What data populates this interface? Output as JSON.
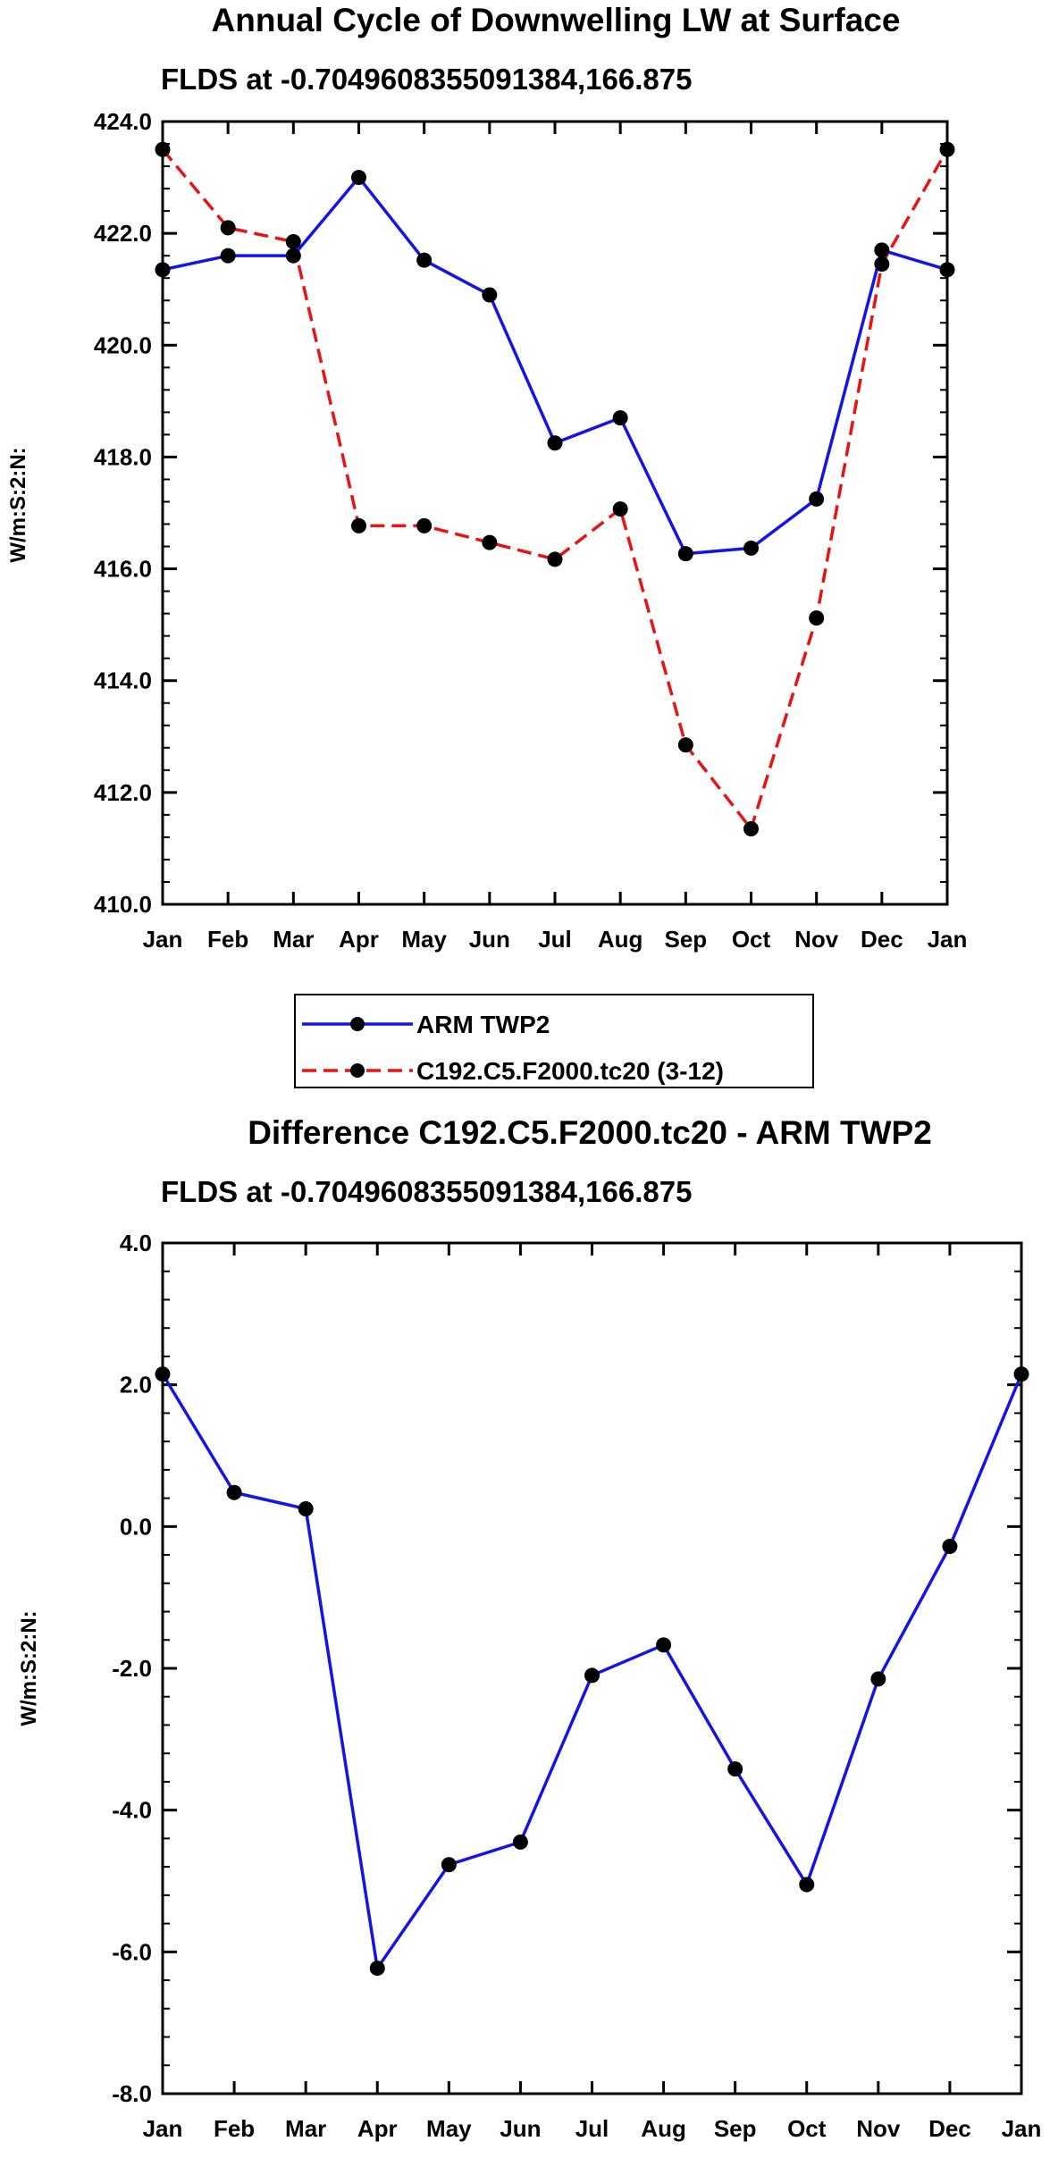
{
  "chart_data": [
    {
      "type": "line",
      "title": "Annual Cycle of Downwelling LW at Surface",
      "subtitle": "FLDS at -0.7049608355091384,166.875",
      "xlabel": "",
      "ylabel": "W/m:S:2:N:",
      "categories": [
        "Jan",
        "Feb",
        "Mar",
        "Apr",
        "May",
        "Jun",
        "Jul",
        "Aug",
        "Sep",
        "Oct",
        "Nov",
        "Dec",
        "Jan"
      ],
      "ylim": [
        410.0,
        424.0
      ],
      "yticks": [
        "410.0",
        "412.0",
        "414.0",
        "416.0",
        "418.0",
        "420.0",
        "422.0",
        "424.0"
      ],
      "series": [
        {
          "name": "ARM TWP2",
          "color": "#1414e6",
          "style": "solid",
          "values": [
            421.35,
            421.6,
            421.6,
            423.0,
            421.52,
            420.9,
            418.25,
            418.7,
            416.27,
            416.37,
            417.25,
            421.7,
            421.35
          ]
        },
        {
          "name": "C192.C5.F2000.tc20 (3-12)",
          "color": "#e61414",
          "style": "dashed",
          "values": [
            423.5,
            422.1,
            421.85,
            416.77,
            416.77,
            416.47,
            416.17,
            417.07,
            412.85,
            411.35,
            415.12,
            421.45,
            423.5
          ]
        }
      ],
      "legend": "below"
    },
    {
      "type": "line",
      "title": "Difference C192.C5.F2000.tc20 - ARM TWP2",
      "subtitle": "FLDS at -0.7049608355091384,166.875",
      "xlabel": "",
      "ylabel": "W/m:S:2:N:",
      "categories": [
        "Jan",
        "Feb",
        "Mar",
        "Apr",
        "May",
        "Jun",
        "Jul",
        "Aug",
        "Sep",
        "Oct",
        "Nov",
        "Dec",
        "Jan"
      ],
      "ylim": [
        -8.0,
        4.0
      ],
      "yticks": [
        "-8.0",
        "-6.0",
        "-4.0",
        "-2.0",
        "0.0",
        "2.0",
        "4.0"
      ],
      "series": [
        {
          "name": "Difference",
          "color": "#1414e6",
          "style": "solid",
          "values": [
            2.15,
            0.48,
            0.25,
            -6.23,
            -4.77,
            -4.45,
            -2.1,
            -1.67,
            -3.42,
            -5.05,
            -2.15,
            -0.28,
            2.15
          ]
        }
      ]
    }
  ]
}
